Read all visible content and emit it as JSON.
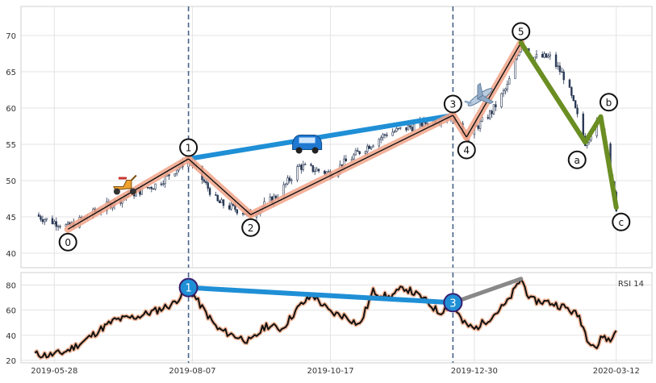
{
  "chart_data": [
    {
      "type": "candlestick",
      "title": "",
      "ylim": [
        38,
        74
      ],
      "yticks": [
        40,
        45,
        50,
        55,
        60,
        65,
        70
      ],
      "x_tick_labels": [
        "2019-05-28",
        "2019-08-07",
        "2019-10-17",
        "2019-12-30",
        "2020-03-12"
      ],
      "x_tick_dates": [
        "2019-05-28",
        "2019-08-07",
        "2019-10-17",
        "2019-12-30",
        "2020-03-12"
      ],
      "date_range": [
        "2019-05-15",
        "2020-03-15"
      ],
      "grid": true,
      "vertical_markers": [
        "2019-08-05",
        "2019-12-19"
      ],
      "elliott_wave": {
        "points": [
          {
            "label": "0",
            "date": "2019-06-04",
            "value": 43.3
          },
          {
            "label": "1",
            "date": "2019-08-05",
            "value": 53.0
          },
          {
            "label": "2",
            "date": "2019-09-06",
            "value": 45.3
          },
          {
            "label": "3",
            "date": "2019-12-19",
            "value": 59.0
          },
          {
            "label": "4",
            "date": "2019-12-26",
            "value": 56.0
          },
          {
            "label": "5",
            "date": "2020-01-23",
            "value": 69.0
          },
          {
            "label": "a",
            "date": "2020-02-25",
            "value": 55.3
          },
          {
            "label": "b",
            "date": "2020-03-04",
            "value": 58.8
          },
          {
            "label": "c",
            "date": "2020-03-12",
            "value": 46.3
          }
        ]
      },
      "divergence_line": {
        "from": "1",
        "to": "3",
        "color": "#1f8fd6"
      },
      "impulse_color": "#f2a58a",
      "correction_color": "#6b8e23",
      "icons": [
        "scooter-icon",
        "car-icon",
        "airplane-icon"
      ],
      "ohlc_anchors": [
        [
          "2019-05-18",
          45.3
        ],
        [
          "2019-05-25",
          44.5
        ],
        [
          "2019-06-01",
          44.0
        ],
        [
          "2019-06-04",
          43.6
        ],
        [
          "2019-06-20",
          46.0
        ],
        [
          "2019-07-05",
          48.0
        ],
        [
          "2019-07-20",
          49.5
        ],
        [
          "2019-08-05",
          53.0
        ],
        [
          "2019-08-20",
          47.0
        ],
        [
          "2019-09-06",
          45.3
        ],
        [
          "2019-09-20",
          48.0
        ],
        [
          "2019-10-01",
          52.0
        ],
        [
          "2019-10-17",
          51.0
        ],
        [
          "2019-11-01",
          54.0
        ],
        [
          "2019-11-15",
          56.5
        ],
        [
          "2019-12-19",
          59.0
        ],
        [
          "2019-12-26",
          56.0
        ],
        [
          "2020-01-08",
          59.5
        ],
        [
          "2020-01-16",
          63.0
        ],
        [
          "2020-01-23",
          69.0
        ],
        [
          "2020-01-28",
          67.0
        ],
        [
          "2020-02-07",
          67.0
        ],
        [
          "2020-02-15",
          64.0
        ],
        [
          "2020-02-25",
          55.3
        ],
        [
          "2020-03-04",
          58.8
        ],
        [
          "2020-03-12",
          46.3
        ]
      ]
    },
    {
      "type": "line",
      "legend_label": "RSI 14",
      "ylim": [
        18,
        90
      ],
      "yticks": [
        20,
        40,
        60,
        80
      ],
      "grid": true,
      "divergence_markers": [
        {
          "label": "1",
          "date": "2019-08-05",
          "value": 78
        },
        {
          "label": "3",
          "date": "2019-12-19",
          "value": 66
        }
      ],
      "divergence_color": "#1f8fd6",
      "extension_line": {
        "from_date": "2019-12-19",
        "from_value": 66,
        "to_date": "2020-01-23",
        "to_value": 85,
        "color": "#888888"
      },
      "series_anchors": [
        [
          "2019-05-18",
          25
        ],
        [
          "2019-05-25",
          24
        ],
        [
          "2019-06-01",
          26
        ],
        [
          "2019-06-04",
          28
        ],
        [
          "2019-06-12",
          35
        ],
        [
          "2019-06-20",
          44
        ],
        [
          "2019-06-28",
          52
        ],
        [
          "2019-07-10",
          55
        ],
        [
          "2019-07-20",
          60
        ],
        [
          "2019-07-28",
          65
        ],
        [
          "2019-08-05",
          78
        ],
        [
          "2019-08-12",
          62
        ],
        [
          "2019-08-20",
          45
        ],
        [
          "2019-08-28",
          40
        ],
        [
          "2019-09-06",
          35
        ],
        [
          "2019-09-14",
          48
        ],
        [
          "2019-09-22",
          45
        ],
        [
          "2019-10-01",
          63
        ],
        [
          "2019-10-08",
          72
        ],
        [
          "2019-10-17",
          58
        ],
        [
          "2019-10-25",
          55
        ],
        [
          "2019-11-01",
          48
        ],
        [
          "2019-11-08",
          75
        ],
        [
          "2019-11-16",
          70
        ],
        [
          "2019-11-24",
          78
        ],
        [
          "2019-12-03",
          70
        ],
        [
          "2019-12-12",
          58
        ],
        [
          "2019-12-19",
          66
        ],
        [
          "2019-12-24",
          50
        ],
        [
          "2019-12-30",
          45
        ],
        [
          "2020-01-08",
          55
        ],
        [
          "2020-01-16",
          66
        ],
        [
          "2020-01-23",
          85
        ],
        [
          "2020-01-28",
          68
        ],
        [
          "2020-02-07",
          66
        ],
        [
          "2020-02-15",
          62
        ],
        [
          "2020-02-22",
          55
        ],
        [
          "2020-02-26",
          38
        ],
        [
          "2020-03-02",
          30
        ],
        [
          "2020-03-05",
          40
        ],
        [
          "2020-03-09",
          35
        ],
        [
          "2020-03-12",
          45
        ]
      ]
    }
  ]
}
